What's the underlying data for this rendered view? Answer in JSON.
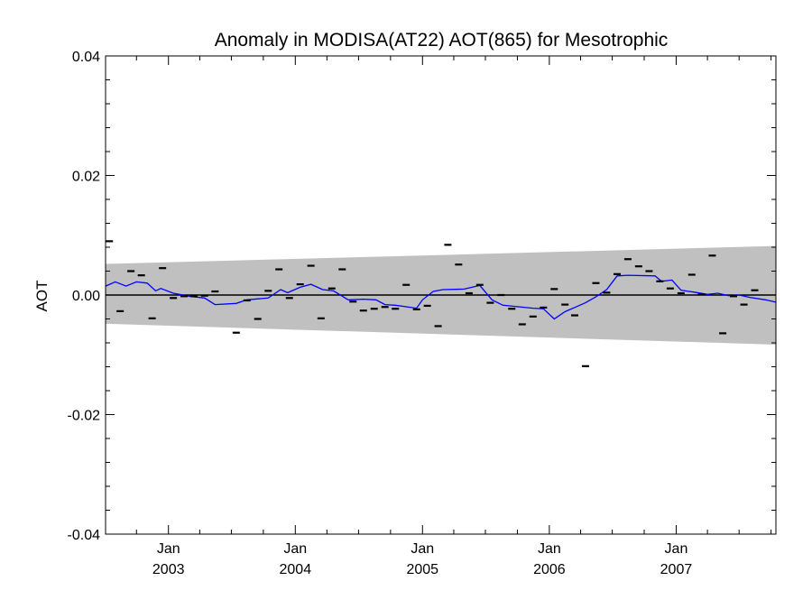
{
  "chart_data": {
    "type": "line",
    "title": "Anomaly in MODISA(AT22) AOT(865) for Mesotrophic",
    "xlabel": "",
    "ylabel": "AOT",
    "xlim": [
      "2002-07-04",
      "2007-10-15"
    ],
    "ylim": [
      -0.04,
      0.04
    ],
    "grid": false,
    "x_ticks": [
      {
        "date": "2003-01-01",
        "line1": "Jan",
        "line2": "2003"
      },
      {
        "date": "2004-01-01",
        "line1": "Jan",
        "line2": "2004"
      },
      {
        "date": "2005-01-01",
        "line1": "Jan",
        "line2": "2005"
      },
      {
        "date": "2006-01-01",
        "line1": "Jan",
        "line2": "2006"
      },
      {
        "date": "2007-01-01",
        "line1": "Jan",
        "line2": "2007"
      }
    ],
    "y_ticks": [
      {
        "value": 0.04,
        "label": "0.04"
      },
      {
        "value": 0.02,
        "label": "0.02"
      },
      {
        "value": 0.0,
        "label": "0.00"
      },
      {
        "value": -0.02,
        "label": "-0.02"
      },
      {
        "value": -0.04,
        "label": "-0.04"
      }
    ],
    "band": {
      "color": "#c0c0c0",
      "upper": [
        [
          "2002-07-04",
          0.0052
        ],
        [
          "2007-10-15",
          0.0082
        ]
      ],
      "lower": [
        [
          "2002-07-04",
          -0.0048
        ],
        [
          "2007-10-15",
          -0.0083
        ]
      ]
    },
    "zero_line": {
      "value": 0.0,
      "color": "#000000"
    },
    "monthly_anomalies": {
      "color": "#000000",
      "points": [
        [
          "2002-07-15",
          0.009
        ],
        [
          "2002-08-15",
          -0.0027
        ],
        [
          "2002-09-15",
          0.004
        ],
        [
          "2002-10-15",
          0.0033
        ],
        [
          "2002-11-15",
          -0.0039
        ],
        [
          "2002-12-15",
          0.0045
        ],
        [
          "2003-01-15",
          -0.0005
        ],
        [
          "2003-02-15",
          -0.0002
        ],
        [
          "2003-03-15",
          -0.0002
        ],
        [
          "2003-04-15",
          -0.0001
        ],
        [
          "2003-05-15",
          0.0006
        ],
        [
          "2003-07-15",
          -0.0063
        ],
        [
          "2003-08-15",
          -0.0009
        ],
        [
          "2003-09-15",
          -0.004
        ],
        [
          "2003-10-15",
          0.0007
        ],
        [
          "2003-11-15",
          0.0043
        ],
        [
          "2003-12-15",
          -0.0005
        ],
        [
          "2004-01-15",
          0.0018
        ],
        [
          "2004-02-15",
          0.0049
        ],
        [
          "2004-03-15",
          -0.0039
        ],
        [
          "2004-04-15",
          0.0011
        ],
        [
          "2004-05-15",
          0.0043
        ],
        [
          "2004-06-15",
          -0.0011
        ],
        [
          "2004-07-15",
          -0.0026
        ],
        [
          "2004-08-15",
          -0.0023
        ],
        [
          "2004-09-15",
          -0.002
        ],
        [
          "2004-10-15",
          -0.0023
        ],
        [
          "2004-11-15",
          0.0017
        ],
        [
          "2004-12-15",
          -0.0024
        ],
        [
          "2005-01-15",
          -0.0018
        ],
        [
          "2005-02-15",
          -0.0052
        ],
        [
          "2005-03-15",
          0.0084
        ],
        [
          "2005-04-15",
          0.0051
        ],
        [
          "2005-05-15",
          0.0003
        ],
        [
          "2005-06-15",
          0.0017
        ],
        [
          "2005-07-15",
          -0.0013
        ],
        [
          "2005-08-15",
          0.0
        ],
        [
          "2005-09-15",
          -0.0023
        ],
        [
          "2005-10-15",
          -0.0049
        ],
        [
          "2005-11-15",
          -0.0036
        ],
        [
          "2005-12-15",
          -0.0021
        ],
        [
          "2006-01-15",
          0.001
        ],
        [
          "2006-02-15",
          -0.0016
        ],
        [
          "2006-03-15",
          -0.0034
        ],
        [
          "2006-04-15",
          -0.0119
        ],
        [
          "2006-05-15",
          0.002
        ],
        [
          "2006-06-15",
          0.0004
        ],
        [
          "2006-07-15",
          0.0035
        ],
        [
          "2006-08-15",
          0.006
        ],
        [
          "2006-09-15",
          0.0048
        ],
        [
          "2006-10-15",
          0.004
        ],
        [
          "2006-11-15",
          0.0023
        ],
        [
          "2006-12-15",
          0.0011
        ],
        [
          "2007-01-15",
          0.0003
        ],
        [
          "2007-02-15",
          0.0034
        ],
        [
          "2007-03-15",
          0.0001
        ],
        [
          "2007-04-15",
          0.0066
        ],
        [
          "2007-05-15",
          -0.0064
        ],
        [
          "2007-06-15",
          -0.0002
        ],
        [
          "2007-07-15",
          -0.0016
        ],
        [
          "2007-08-15",
          0.0008
        ]
      ]
    },
    "smoothed_line": {
      "color": "#0000ff",
      "points": [
        [
          "2002-07-04",
          0.0015
        ],
        [
          "2002-08-01",
          0.0022
        ],
        [
          "2002-09-01",
          0.0015
        ],
        [
          "2002-10-01",
          0.0022
        ],
        [
          "2002-11-01",
          0.002
        ],
        [
          "2002-11-25",
          0.0007
        ],
        [
          "2002-12-10",
          0.0011
        ],
        [
          "2003-01-15",
          0.0003
        ],
        [
          "2003-03-01",
          -0.0002
        ],
        [
          "2003-04-15",
          -0.0005
        ],
        [
          "2003-05-15",
          -0.0016
        ],
        [
          "2003-07-15",
          -0.0014
        ],
        [
          "2003-08-15",
          -0.0008
        ],
        [
          "2003-10-15",
          -0.0005
        ],
        [
          "2003-11-20",
          0.0009
        ],
        [
          "2003-12-10",
          0.0004
        ],
        [
          "2004-01-15",
          0.0013
        ],
        [
          "2004-02-15",
          0.0018
        ],
        [
          "2004-03-20",
          0.0009
        ],
        [
          "2004-04-20",
          0.0007
        ],
        [
          "2004-06-01",
          -0.0008
        ],
        [
          "2004-07-15",
          -0.0007
        ],
        [
          "2004-08-20",
          -0.0008
        ],
        [
          "2004-09-15",
          -0.0016
        ],
        [
          "2004-10-15",
          -0.0017
        ],
        [
          "2004-12-15",
          -0.0022
        ],
        [
          "2005-01-01",
          -0.0008
        ],
        [
          "2005-02-01",
          0.0006
        ],
        [
          "2005-03-01",
          0.0009
        ],
        [
          "2005-05-01",
          0.001
        ],
        [
          "2005-06-15",
          0.0016
        ],
        [
          "2005-07-20",
          -0.0008
        ],
        [
          "2005-08-20",
          -0.0017
        ],
        [
          "2005-11-15",
          -0.0022
        ],
        [
          "2005-12-15",
          -0.0023
        ],
        [
          "2006-01-15",
          -0.004
        ],
        [
          "2006-02-15",
          -0.0028
        ],
        [
          "2006-04-15",
          -0.0013
        ],
        [
          "2006-05-15",
          -0.0003
        ],
        [
          "2006-06-15",
          0.0009
        ],
        [
          "2006-07-15",
          0.0032
        ],
        [
          "2006-08-15",
          0.0033
        ],
        [
          "2006-11-01",
          0.0032
        ],
        [
          "2006-11-20",
          0.0023
        ],
        [
          "2006-12-20",
          0.0025
        ],
        [
          "2007-01-15",
          0.0008
        ],
        [
          "2007-02-20",
          0.0005
        ],
        [
          "2007-04-01",
          0.0001
        ],
        [
          "2007-05-01",
          0.0003
        ],
        [
          "2007-06-01",
          -0.0001
        ],
        [
          "2007-07-01",
          0.0
        ],
        [
          "2007-08-01",
          -0.0004
        ],
        [
          "2007-09-15",
          -0.0008
        ],
        [
          "2007-10-15",
          -0.0012
        ]
      ]
    }
  }
}
